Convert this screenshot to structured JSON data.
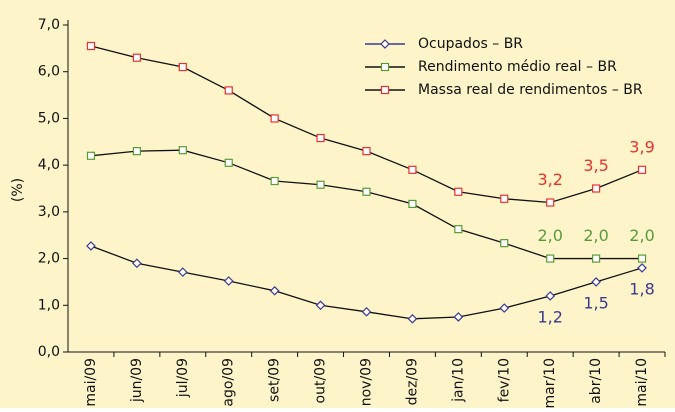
{
  "chart_data": {
    "type": "line",
    "y_label": "(%)",
    "categories": [
      "mai/09",
      "jun/09",
      "jul/09",
      "ago/09",
      "set/09",
      "out/09",
      "nov/09",
      "dez/09",
      "jan/10",
      "fev/10",
      "mar/10",
      "abr/10",
      "mai/10"
    ],
    "series": [
      {
        "name": "Ocupados – BR",
        "color": "#3b3a8c",
        "marker": "diamond",
        "values": [
          2.27,
          1.9,
          1.71,
          1.52,
          1.31,
          1.0,
          0.86,
          0.71,
          0.75,
          0.94,
          1.2,
          1.5,
          1.8
        ],
        "value_labels": [
          null,
          null,
          null,
          null,
          null,
          null,
          null,
          null,
          null,
          null,
          "1,2",
          "1,5",
          "1,8"
        ]
      },
      {
        "name": "Rendimento médio real – BR",
        "color": "#5a9a3a",
        "marker": "square",
        "values": [
          4.2,
          4.3,
          4.32,
          4.05,
          3.66,
          3.58,
          3.43,
          3.17,
          2.63,
          2.33,
          2.0,
          2.0,
          2.0
        ],
        "value_labels": [
          null,
          null,
          null,
          null,
          null,
          null,
          null,
          null,
          null,
          null,
          "2,0",
          "2,0",
          "2,0"
        ]
      },
      {
        "name": "Massa real de rendimentos – BR",
        "color": "#e8322f",
        "marker": "square",
        "values": [
          6.55,
          6.3,
          6.1,
          5.6,
          5.0,
          4.58,
          4.3,
          3.9,
          3.43,
          3.28,
          3.2,
          3.5,
          3.9
        ],
        "value_labels": [
          null,
          null,
          null,
          null,
          null,
          null,
          null,
          null,
          null,
          null,
          "3,2",
          "3,5",
          "3,9"
        ]
      }
    ],
    "ylim": [
      0,
      7
    ],
    "yticks": [
      {
        "value": 0,
        "label": "0,0"
      },
      {
        "value": 1,
        "label": "1,0"
      },
      {
        "value": 2,
        "label": "2,0"
      },
      {
        "value": 3,
        "label": "3,0"
      },
      {
        "value": 4,
        "label": "4,0"
      },
      {
        "value": 5,
        "label": "5,0"
      },
      {
        "value": 6,
        "label": "6,0"
      },
      {
        "value": 7,
        "label": "7,0"
      }
    ],
    "grid": false,
    "legend": "top-right",
    "background": "#fdf5c9"
  }
}
